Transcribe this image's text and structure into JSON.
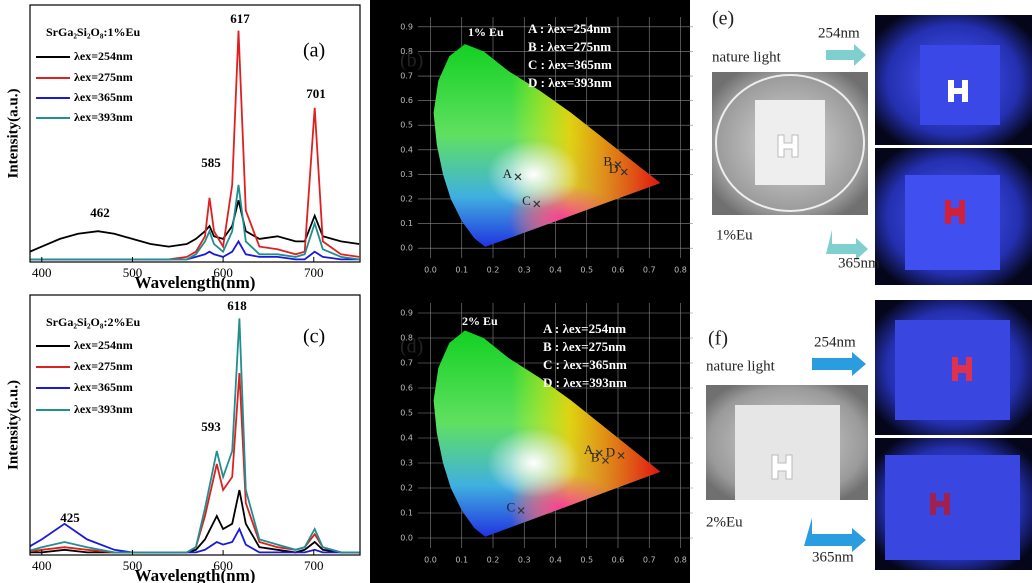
{
  "chart_data": [
    {
      "type": "line",
      "panel": "(a)",
      "legend_title": "SrGa₂Si₂O₈:1%Eu",
      "x_label": "Wavelength(nm)",
      "y_label": "Intensity(a.u.)",
      "xlim": [
        387,
        751
      ],
      "xticks": [
        400,
        500,
        600,
        700
      ],
      "ylim": [
        0,
        100
      ],
      "x": [
        380,
        400,
        420,
        440,
        462,
        480,
        500,
        520,
        540,
        560,
        570,
        580,
        585,
        590,
        600,
        610,
        617,
        625,
        640,
        660,
        680,
        690,
        701,
        710,
        730,
        750
      ],
      "series": [
        {
          "name": "λex=254nm",
          "color": "#000000",
          "values": [
            3,
            6,
            9,
            11,
            12,
            11,
            9,
            7,
            6,
            7,
            9,
            12,
            14,
            10,
            9,
            14,
            24,
            12,
            9,
            10,
            8,
            8,
            18,
            10,
            8,
            7
          ]
        },
        {
          "name": "λex=275nm",
          "color": "#e02020",
          "values": [
            1,
            1,
            1,
            1,
            1,
            1,
            1,
            1,
            1,
            2,
            4,
            10,
            25,
            12,
            6,
            30,
            90,
            20,
            6,
            5,
            3,
            4,
            60,
            8,
            3,
            2
          ]
        },
        {
          "name": "λex=365nm",
          "color": "#1a1adb",
          "values": [
            1,
            1,
            1,
            1,
            1,
            1,
            1,
            1,
            1,
            1,
            2,
            3,
            4,
            3,
            2,
            4,
            8,
            3,
            2,
            2,
            1,
            1,
            4,
            2,
            1,
            1
          ]
        },
        {
          "name": "λex=393nm",
          "color": "#1f8f8f",
          "values": [
            1,
            1,
            1,
            1,
            1,
            1,
            1,
            1,
            1,
            1,
            3,
            8,
            12,
            7,
            4,
            12,
            30,
            8,
            3,
            3,
            2,
            3,
            15,
            5,
            2,
            1
          ]
        }
      ],
      "annotations": [
        "462",
        "585",
        "617",
        "701"
      ]
    },
    {
      "type": "scatter",
      "panel": "(b)",
      "title": "1% Eu",
      "xlim": [
        -0.04,
        0.84
      ],
      "ylim": [
        -0.04,
        0.94
      ],
      "xticks": [
        {
          "value": 0,
          "label": "0.0"
        },
        0.1,
        0.2,
        0.3,
        0.4,
        0.5,
        0.6,
        0.7,
        0.8
      ],
      "yticks": [
        {
          "value": 0,
          "label": "0.0"
        },
        0.1,
        0.2,
        0.3,
        0.4,
        0.5,
        0.6,
        0.7,
        0.8,
        0.9
      ],
      "x": [
        0.28,
        0.6,
        0.34,
        0.62
      ],
      "values": [
        0.29,
        0.34,
        0.18,
        0.31
      ],
      "point_labels": [
        "A",
        "B",
        "C",
        "D"
      ],
      "legend": [
        "A : λex=254nm",
        "B : λex=275nm",
        "C : λex=365nm",
        "D : λex=393nm"
      ]
    },
    {
      "type": "line",
      "panel": "(c)",
      "legend_title": "SrGa₂Si₂O₈:2%Eu",
      "x_label": "Wavelength(nm)",
      "y_label": "Intensity(a.u.)",
      "xlim": [
        387,
        751
      ],
      "xticks": [
        400,
        500,
        600,
        700
      ],
      "ylim": [
        0,
        100
      ],
      "x": [
        380,
        400,
        425,
        450,
        480,
        500,
        520,
        540,
        560,
        570,
        580,
        593,
        600,
        610,
        618,
        625,
        640,
        660,
        680,
        690,
        701,
        710,
        730,
        750
      ],
      "series": [
        {
          "name": "λex=254nm",
          "color": "#000000",
          "values": [
            1,
            1,
            2,
            1,
            1,
            1,
            1,
            1,
            1,
            2,
            6,
            15,
            10,
            12,
            25,
            12,
            3,
            2,
            1,
            2,
            5,
            2,
            1,
            1
          ]
        },
        {
          "name": "λex=275nm",
          "color": "#e02020",
          "values": [
            1,
            2,
            3,
            2,
            1,
            1,
            1,
            1,
            1,
            3,
            15,
            35,
            25,
            30,
            70,
            20,
            5,
            3,
            2,
            3,
            8,
            3,
            1,
            1
          ]
        },
        {
          "name": "λex=365nm",
          "color": "#1a1adb",
          "values": [
            2,
            6,
            12,
            6,
            2,
            1,
            1,
            1,
            1,
            1,
            2,
            5,
            4,
            5,
            10,
            4,
            1,
            1,
            1,
            1,
            2,
            1,
            1,
            1
          ]
        },
        {
          "name": "λex=393nm",
          "color": "#1f8f8f",
          "values": [
            1,
            3,
            5,
            3,
            1,
            1,
            1,
            1,
            1,
            3,
            18,
            40,
            30,
            40,
            91,
            25,
            6,
            4,
            2,
            3,
            10,
            3,
            1,
            1
          ]
        }
      ],
      "annotations": [
        "425",
        "593",
        "618"
      ]
    },
    {
      "type": "scatter",
      "panel": "(d)",
      "title": "2% Eu",
      "xlim": [
        -0.04,
        0.84
      ],
      "ylim": [
        -0.04,
        0.94
      ],
      "xticks": [
        {
          "value": 0,
          "label": "0.0"
        },
        0.1,
        0.2,
        0.3,
        0.4,
        0.5,
        0.6,
        0.7,
        0.8
      ],
      "yticks": [
        {
          "value": 0,
          "label": "0.0"
        },
        0.1,
        0.2,
        0.3,
        0.4,
        0.5,
        0.6,
        0.7,
        0.8,
        0.9
      ],
      "x": [
        0.54,
        0.56,
        0.29,
        0.61
      ],
      "values": [
        0.34,
        0.31,
        0.11,
        0.33
      ],
      "point_labels": [
        "A",
        "B",
        "C",
        "D"
      ],
      "legend": [
        "A : λex=254nm",
        "B : λex=275nm",
        "C : λex=365nm",
        "D : λex=393nm"
      ]
    }
  ],
  "photo_panels": [
    {
      "label": "(e)",
      "light": "nature light",
      "uv_short": "254nm",
      "uv_long": "365nm",
      "sample": "1%Eu"
    },
    {
      "label": "(f)",
      "light": "nature light",
      "uv_short": "254nm",
      "uv_long": "365nm",
      "sample": "2%Eu"
    }
  ]
}
